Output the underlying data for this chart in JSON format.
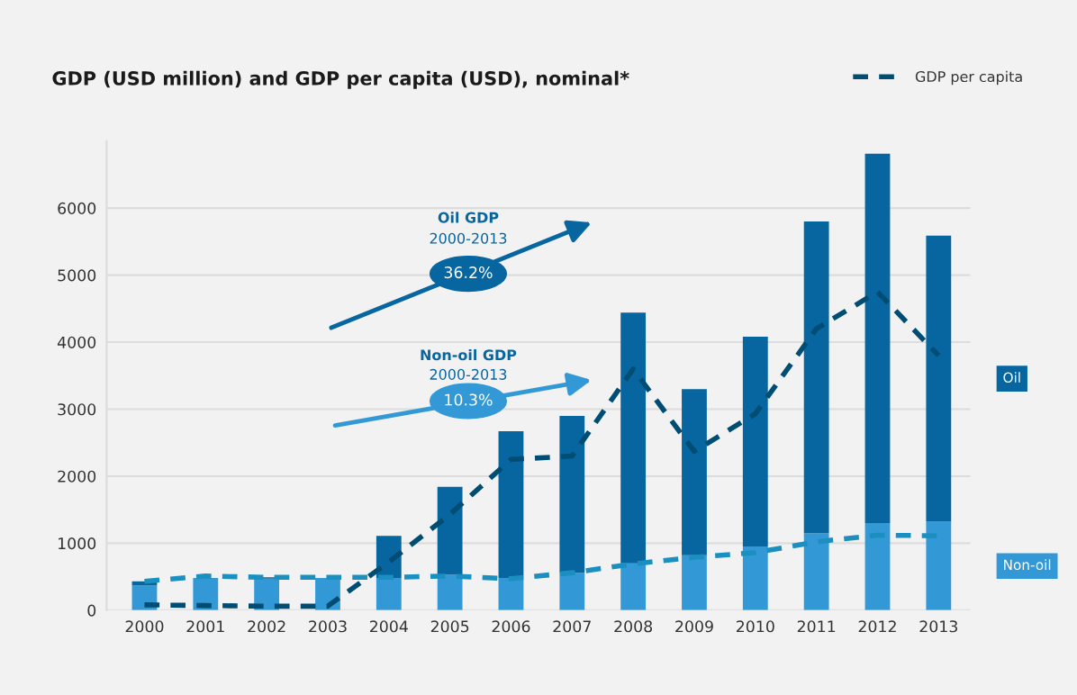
{
  "chart_data": {
    "type": "bar",
    "stacked": true,
    "title": "GDP (USD million) and GDP per capita (USD), nominal*",
    "categories": [
      "2000",
      "2001",
      "2002",
      "2003",
      "2004",
      "2005",
      "2006",
      "2007",
      "2008",
      "2009",
      "2010",
      "2011",
      "2012",
      "2013"
    ],
    "series": [
      {
        "name": "Non-oil",
        "color": "#3399d6",
        "values": [
          370,
          480,
          470,
          480,
          480,
          530,
          480,
          560,
          700,
          820,
          950,
          1150,
          1300,
          1320
        ]
      },
      {
        "name": "Oil",
        "color": "#0765a0",
        "values": [
          60,
          null,
          20,
          null,
          630,
          1310,
          2190,
          2340,
          3740,
          2480,
          3130,
          4650,
          5510,
          4270
        ]
      },
      {
        "name": "GDP per capita",
        "type": "line",
        "color": "#004d73",
        "values": [
          80,
          70,
          60,
          60,
          720,
          1430,
          2250,
          2300,
          3600,
          2370,
          2930,
          4200,
          4750,
          3800
        ]
      },
      {
        "type": "line",
        "color": "#1a8fc0",
        "values": [
          430,
          510,
          490,
          490,
          490,
          510,
          470,
          560,
          690,
          790,
          860,
          1020,
          1120,
          1110
        ]
      }
    ],
    "ylim": [
      0,
      7000
    ],
    "yticks": [
      0,
      1000,
      2000,
      3000,
      4000,
      5000,
      6000
    ],
    "grid": "y",
    "legend": "top right",
    "line_style": "dashed",
    "annotations": [
      "Oil GDP",
      "2000-2013",
      "36.2%",
      "Non-oil GDP",
      "2000-2013",
      "10.3%"
    ]
  }
}
